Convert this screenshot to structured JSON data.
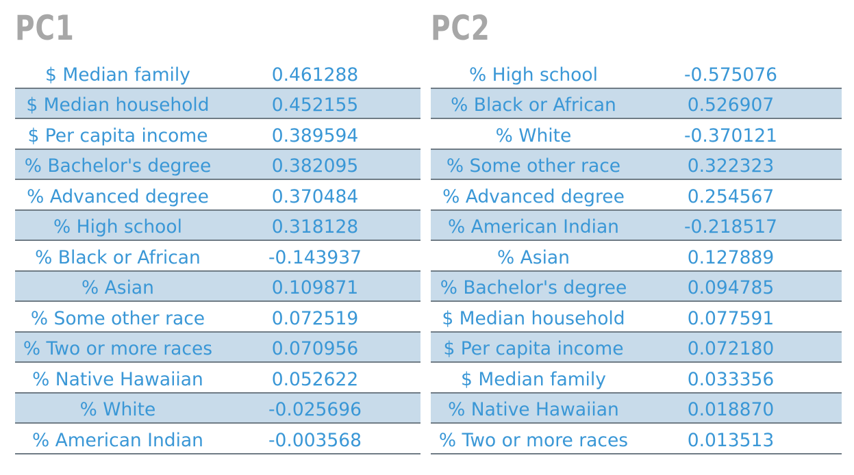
{
  "pc1": {
    "title": "PC1",
    "rows": [
      {
        "name": "$ Median family",
        "value": "0.461288"
      },
      {
        "name": "$ Median household",
        "value": "0.452155"
      },
      {
        "name": "$ Per capita income",
        "value": "0.389594"
      },
      {
        "name": "% Bachelor's degree",
        "value": "0.382095"
      },
      {
        "name": "% Advanced degree",
        "value": "0.370484"
      },
      {
        "name": "% High school",
        "value": "0.318128"
      },
      {
        "name": "% Black or African",
        "value": "-0.143937"
      },
      {
        "name": "% Asian",
        "value": "0.109871"
      },
      {
        "name": "% Some other race",
        "value": "0.072519"
      },
      {
        "name": "% Two or more races",
        "value": "0.070956"
      },
      {
        "name": "% Native Hawaiian",
        "value": "0.052622"
      },
      {
        "name": "% White",
        "value": "-0.025696"
      },
      {
        "name": "% American Indian",
        "value": "-0.003568"
      }
    ]
  },
  "pc2": {
    "title": "PC2",
    "rows": [
      {
        "name": "% High school",
        "value": "-0.575076"
      },
      {
        "name": "% Black or African",
        "value": "0.526907"
      },
      {
        "name": "% White",
        "value": "-0.370121"
      },
      {
        "name": "% Some other race",
        "value": "0.322323"
      },
      {
        "name": "% Advanced degree",
        "value": "0.254567"
      },
      {
        "name": "% American Indian",
        "value": "-0.218517"
      },
      {
        "name": "% Asian",
        "value": "0.127889"
      },
      {
        "name": "% Bachelor's degree",
        "value": "0.094785"
      },
      {
        "name": "$ Median household",
        "value": "0.077591"
      },
      {
        "name": "$ Per capita income",
        "value": "0.072180"
      },
      {
        "name": "$ Median family",
        "value": "0.033356"
      },
      {
        "name": "% Native Hawaiian",
        "value": "0.018870"
      },
      {
        "name": "% Two or more races",
        "value": "0.013513"
      }
    ]
  },
  "colors": {
    "title": "#a7a7a7",
    "text": "#3a97d6",
    "shaded_row": "#c8dbea",
    "rule": "#6f7b85"
  }
}
